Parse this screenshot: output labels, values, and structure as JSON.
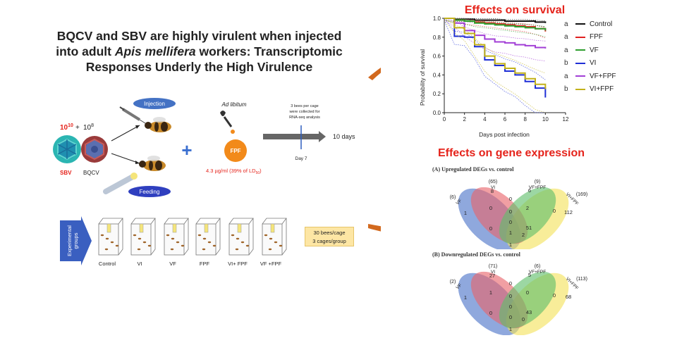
{
  "title": {
    "line1": "BQCV and SBV are highly virulent when injected",
    "line2_prefix": "into adult ",
    "line2_species": "Apis mellifera",
    "line2_suffix": " workers: Transcriptomic",
    "line3": "Responses Underly the High Virulence"
  },
  "survival_heading": "Effects on survival",
  "gene_heading": "Effects on gene expression",
  "colors": {
    "accent_red": "#e5231b",
    "arrow_orange": "#d2691e",
    "injection_blue": "#4472c4",
    "feeding_blue": "#2f3fbf",
    "fpf_orange": "#f28a1a"
  },
  "diagram": {
    "dose_sbv": "10",
    "dose_sbv_exp": "10",
    "dose_plus": "+",
    "dose_bqcv": "10",
    "dose_bqcv_exp": "8",
    "virus_sbv": "SBV",
    "virus_bqcv": "BQCV",
    "injection_label": "Injection",
    "feeding_label": "Feeding",
    "ad_libitum": "Ad libitum",
    "fpf_label": "FPF",
    "fpf_dose": "4.3 µg/ml (39% of LD",
    "fpf_dose_sub": "50",
    "fpf_dose_end": ")",
    "collection_line1": "3 bees per cage",
    "collection_line2": "were collected for",
    "collection_line3": "RNA-seq analysis",
    "duration": "10 days",
    "day_marker": "Day 7",
    "experimental_groups_line1": "Experimental",
    "experimental_groups_line2": "groups",
    "groups": [
      "Control",
      "VI",
      "VF",
      "FPF",
      "VI+ FPF",
      "VF +FPF"
    ],
    "cage_info_line1": "30 bees/cage",
    "cage_info_line2": "3 cages/group"
  },
  "chart_data": {
    "type": "line",
    "title": "Effects on survival",
    "xlabel": "Days post infection",
    "ylabel": "Probability of survival",
    "xlim": [
      0,
      12
    ],
    "ylim": [
      0,
      1.0
    ],
    "xticks": [
      0,
      2,
      4,
      6,
      8,
      10,
      12
    ],
    "yticks": [
      "0.0",
      "0.2",
      "0.4",
      "0.6",
      "0.8",
      "1.0"
    ],
    "legend_position": "right",
    "series": [
      {
        "name": "Control",
        "significance": "a",
        "color": "#111111",
        "x": [
          0,
          1,
          2,
          3,
          4,
          5,
          6,
          7,
          8,
          9,
          10
        ],
        "y": [
          1.0,
          0.99,
          0.99,
          0.98,
          0.98,
          0.98,
          0.97,
          0.97,
          0.97,
          0.96,
          0.95
        ]
      },
      {
        "name": "FPF",
        "significance": "a",
        "color": "#e02020",
        "x": [
          0,
          1,
          2,
          3,
          4,
          5,
          6,
          7,
          8,
          9,
          10
        ],
        "y": [
          1.0,
          0.98,
          0.97,
          0.96,
          0.95,
          0.94,
          0.93,
          0.92,
          0.91,
          0.89,
          0.86
        ]
      },
      {
        "name": "VF",
        "significance": "a",
        "color": "#2e9e2e",
        "x": [
          0,
          1,
          2,
          3,
          4,
          5,
          6,
          7,
          8,
          9,
          10
        ],
        "y": [
          1.0,
          0.98,
          0.97,
          0.95,
          0.94,
          0.93,
          0.92,
          0.91,
          0.9,
          0.89,
          0.87
        ]
      },
      {
        "name": "VI",
        "significance": "b",
        "color": "#1f2fd6",
        "x": [
          0,
          1,
          2,
          3,
          4,
          5,
          6,
          7,
          8,
          9,
          10
        ],
        "y": [
          1.0,
          0.81,
          0.8,
          0.7,
          0.56,
          0.5,
          0.44,
          0.4,
          0.33,
          0.26,
          0.16
        ]
      },
      {
        "name": "VF+FPF",
        "significance": "a",
        "color": "#a23fd6",
        "x": [
          0,
          1,
          2,
          3,
          4,
          5,
          6,
          7,
          8,
          9,
          10
        ],
        "y": [
          1.0,
          0.95,
          0.87,
          0.82,
          0.78,
          0.75,
          0.74,
          0.72,
          0.71,
          0.69,
          0.68
        ]
      },
      {
        "name": "VI+FPF",
        "significance": "b",
        "color": "#c2b21a",
        "x": [
          0,
          1,
          2,
          3,
          4,
          5,
          6,
          7,
          8,
          9,
          10
        ],
        "y": [
          1.0,
          0.9,
          0.84,
          0.72,
          0.6,
          0.52,
          0.47,
          0.42,
          0.36,
          0.3,
          0.25
        ]
      }
    ]
  },
  "venn_up": {
    "title": "(A)  Upregulated DEGs vs. control",
    "sets": [
      {
        "name": "VI",
        "total": "(65)"
      },
      {
        "name": "VF+FPF",
        "total": "(9)"
      },
      {
        "name": "VI+FPF",
        "total": "(169)"
      },
      {
        "name": "VF",
        "total": "(6)"
      }
    ],
    "regions": [
      "8",
      "6",
      "1",
      "0",
      "0",
      "0",
      "2",
      "0",
      "112",
      "0",
      "1",
      "51",
      "0",
      "2",
      "1"
    ]
  },
  "venn_down": {
    "title": "(B) Downregulated DEGs vs. control",
    "sets": [
      {
        "name": "VI",
        "total": "(71)"
      },
      {
        "name": "VF+FPF",
        "total": "(6)"
      },
      {
        "name": "VI+FPF",
        "total": "(113)"
      },
      {
        "name": "VF",
        "total": "(2)"
      }
    ],
    "regions": [
      "27",
      "5",
      "1",
      "0",
      "0",
      "1",
      "0",
      "0",
      "68",
      "0",
      "0",
      "43",
      "0",
      "0",
      "1"
    ]
  }
}
